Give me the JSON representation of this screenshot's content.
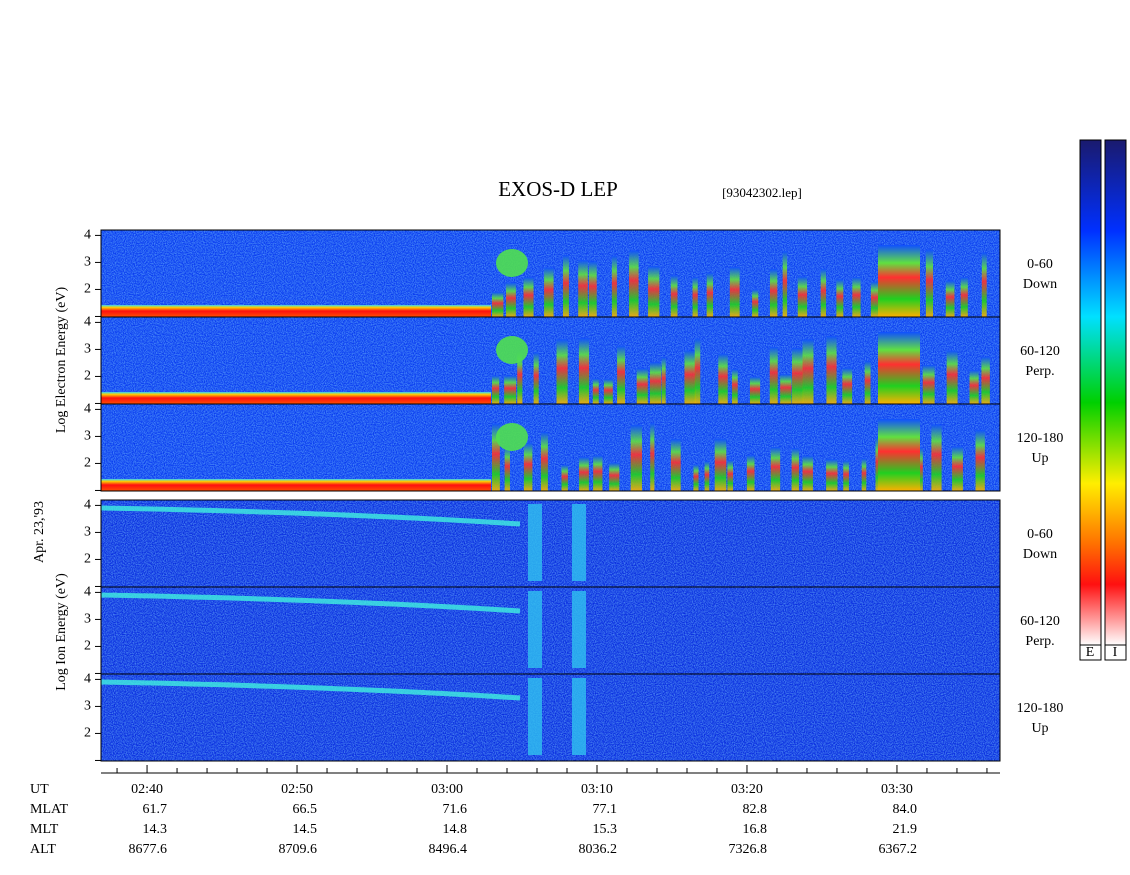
{
  "header": {
    "title": "EXOS-D LEP",
    "file": "[93042302.lep]"
  },
  "date": "Apr. 23,'93",
  "electron": {
    "ylabel": "Log Electron Energy (eV)",
    "panels": [
      {
        "angle": "0-60",
        "direction": "Down"
      },
      {
        "angle": "60-120",
        "direction": "Perp."
      },
      {
        "angle": "120-180",
        "direction": "Up"
      }
    ]
  },
  "ion": {
    "ylabel": "Log Ion Energy (eV)",
    "panels": [
      {
        "angle": "0-60",
        "direction": "Down"
      },
      {
        "angle": "60-120",
        "direction": "Perp."
      },
      {
        "angle": "120-180",
        "direction": "Up"
      }
    ]
  },
  "energy_axis": {
    "ylim": [
      0.98,
      4.2
    ],
    "yticks": [
      2,
      3,
      4
    ],
    "minor_yticks": [
      1
    ]
  },
  "time_axis": {
    "label": "UT",
    "xlim": [
      156.93,
      216.87
    ],
    "xticks": [
      {
        "value": 160,
        "label": "02:40"
      },
      {
        "value": 170,
        "label": "02:50"
      },
      {
        "value": 180,
        "label": "03:00"
      },
      {
        "value": 190,
        "label": "03:10"
      },
      {
        "value": 200,
        "label": "03:20"
      },
      {
        "value": 210,
        "label": "03:30"
      }
    ],
    "minor_xticks": [
      158,
      162,
      164,
      166,
      168,
      172,
      174,
      176,
      178,
      182,
      184,
      186,
      188,
      192,
      194,
      196,
      198,
      202,
      204,
      206,
      208,
      212,
      214,
      216
    ]
  },
  "orbit": {
    "rows": [
      {
        "label": "MLAT",
        "values": [
          "61.7",
          "66.5",
          "71.6",
          "77.1",
          "82.8",
          "84.0"
        ]
      },
      {
        "label": "MLT",
        "values": [
          "14.3",
          "14.5",
          "14.8",
          "15.3",
          "16.8",
          "21.9"
        ]
      },
      {
        "label": "ALT",
        "values": [
          "8677.6",
          "8709.6",
          "8496.4",
          "8036.2",
          "7326.8",
          "6367.2"
        ]
      }
    ]
  },
  "colorbar": {
    "labels": [
      "E",
      "I"
    ]
  }
}
